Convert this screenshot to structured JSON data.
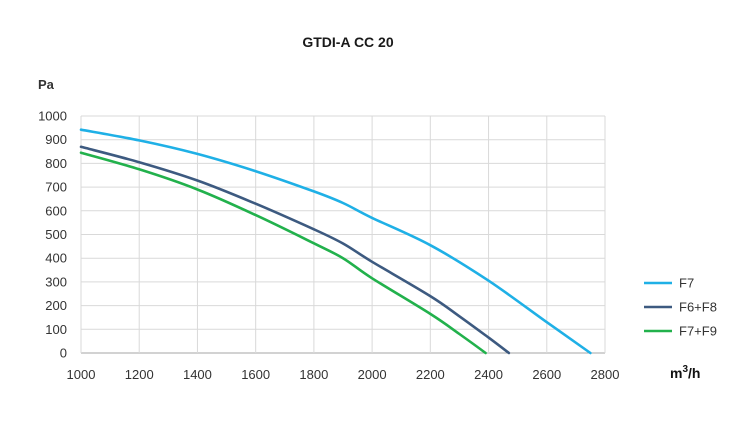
{
  "chart_data": {
    "type": "line",
    "title": "GTDI-A CC 20",
    "ylabel": "Pa",
    "xlabel": "m³/h",
    "xlim": [
      1000,
      2800
    ],
    "ylim": [
      0,
      1000
    ],
    "x_ticks": [
      1000,
      1200,
      1400,
      1600,
      1800,
      2000,
      2200,
      2400,
      2600,
      2800
    ],
    "y_ticks": [
      0,
      100,
      200,
      300,
      400,
      500,
      600,
      700,
      800,
      900,
      1000
    ],
    "grid": true,
    "legend_position": "right",
    "series": [
      {
        "name": "F7",
        "color": "#1fb0e6",
        "points": [
          [
            1000,
            942
          ],
          [
            1200,
            897
          ],
          [
            1400,
            840
          ],
          [
            1600,
            767
          ],
          [
            1800,
            682
          ],
          [
            1900,
            633
          ],
          [
            2000,
            570
          ],
          [
            2200,
            455
          ],
          [
            2400,
            305
          ],
          [
            2600,
            130
          ],
          [
            2750,
            0
          ]
        ]
      },
      {
        "name": "F6+F8",
        "color": "#3d5a80",
        "points": [
          [
            1000,
            870
          ],
          [
            1200,
            805
          ],
          [
            1400,
            728
          ],
          [
            1600,
            630
          ],
          [
            1800,
            522
          ],
          [
            1900,
            462
          ],
          [
            2000,
            385
          ],
          [
            2200,
            240
          ],
          [
            2300,
            155
          ],
          [
            2400,
            65
          ],
          [
            2470,
            0
          ]
        ]
      },
      {
        "name": "F7+F9",
        "color": "#22b14c",
        "points": [
          [
            1000,
            845
          ],
          [
            1200,
            775
          ],
          [
            1400,
            690
          ],
          [
            1600,
            582
          ],
          [
            1800,
            463
          ],
          [
            1900,
            400
          ],
          [
            2000,
            315
          ],
          [
            2200,
            165
          ],
          [
            2300,
            80
          ],
          [
            2390,
            0
          ]
        ]
      }
    ]
  }
}
